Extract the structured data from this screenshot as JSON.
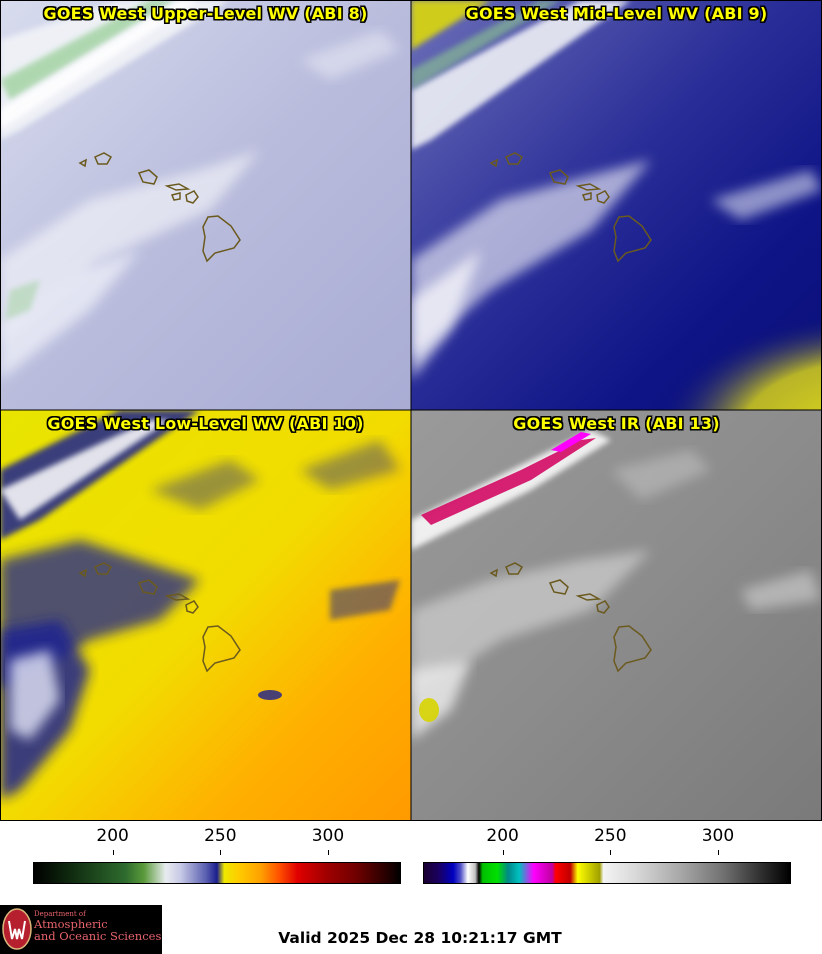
{
  "panels": [
    {
      "title": "GOES West Upper-Level WV (ABI 8)",
      "theme": "upper"
    },
    {
      "title": "GOES West Mid-Level WV (ABI 9)",
      "theme": "mid"
    },
    {
      "title": "GOES West Low-Level WV (ABI 10)",
      "theme": "low"
    },
    {
      "title": "GOES West IR (ABI 13)",
      "theme": "ir"
    }
  ],
  "colorbars": [
    {
      "name": "wv-colorbar",
      "ticks": [
        "200",
        "250",
        "300"
      ],
      "tick_values": [
        200,
        250,
        300
      ],
      "range": [
        163,
        333
      ]
    },
    {
      "name": "ir-colorbar",
      "ticks": [
        "200",
        "250",
        "300"
      ],
      "tick_values": [
        200,
        250,
        300
      ],
      "range": [
        163,
        333
      ]
    }
  ],
  "logo": {
    "line1": "Department of",
    "line2": "Atmospheric",
    "line3": "and Oceanic Sciences"
  },
  "valid_time": "Valid 2025 Dec 28 10:21:17 GMT",
  "colors": {
    "title": "#ffff00",
    "coastline": "#6b5a1e",
    "logo_bg": "#000000",
    "logo_text": "#e8636b"
  }
}
